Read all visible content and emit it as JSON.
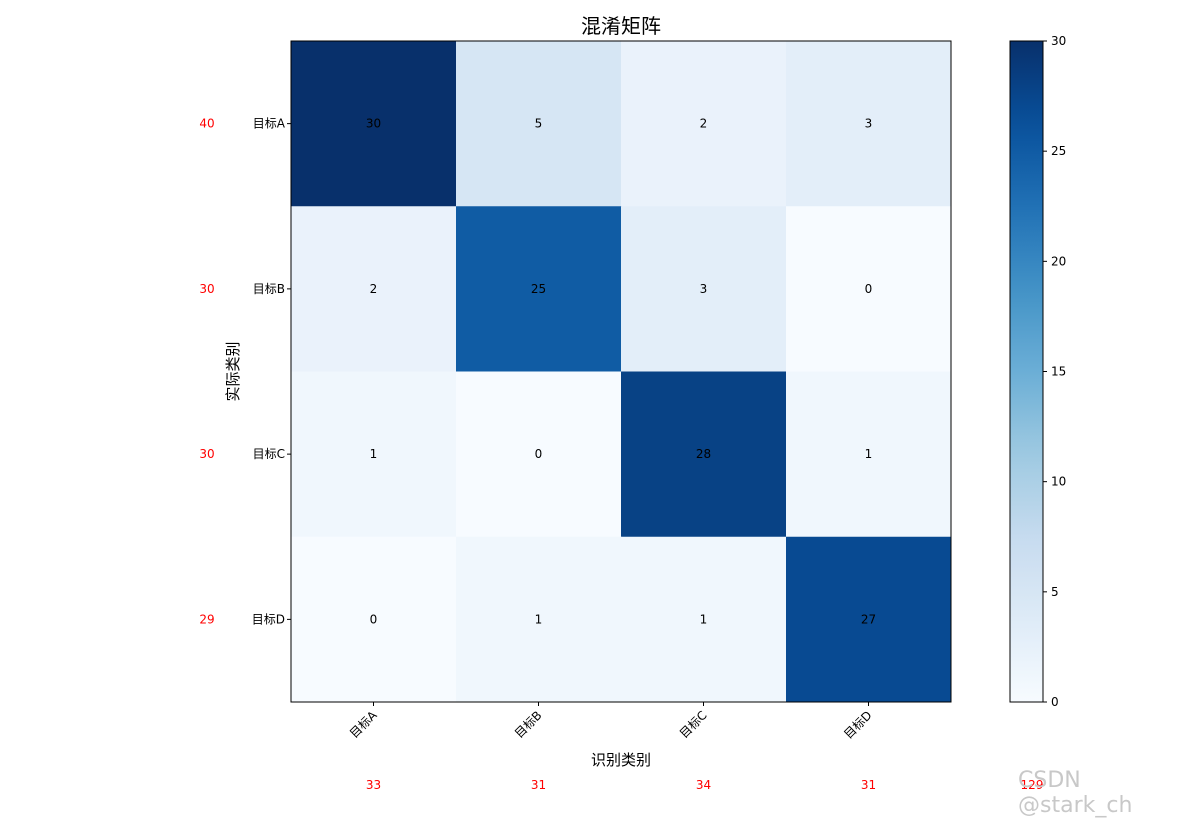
{
  "chart_data": {
    "type": "heatmap",
    "title": "混淆矩阵",
    "xlabel": "识别类别",
    "ylabel": "实际类别",
    "x_categories": [
      "目标A",
      "目标B",
      "目标C",
      "目标D"
    ],
    "y_categories": [
      "目标A",
      "目标B",
      "目标C",
      "目标D"
    ],
    "values": [
      [
        30,
        5,
        2,
        3
      ],
      [
        2,
        25,
        3,
        0
      ],
      [
        1,
        0,
        28,
        1
      ],
      [
        0,
        1,
        1,
        27
      ]
    ],
    "colormap": "Blues",
    "vmin": 0,
    "vmax": 30,
    "colorbar_ticks": [
      0,
      5,
      10,
      15,
      20,
      25,
      30
    ],
    "row_totals": [
      40,
      30,
      30,
      29
    ],
    "column_totals": [
      33,
      31,
      34,
      31
    ],
    "grand_total": 129,
    "totals_color": "#ff0000"
  },
  "watermark": "CSDN @stark_ch"
}
